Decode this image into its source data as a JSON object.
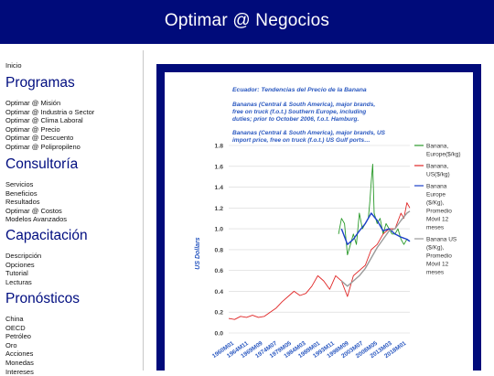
{
  "header": {
    "title": "Optimar @ Negocios"
  },
  "sidebar": {
    "home": "Inicio",
    "sections": [
      {
        "title": "Programas",
        "items": [
          "Optimar @ Misión",
          "Optimar @ Industria o Sector",
          "Optimar @ Clima Laboral",
          "Optimar @ Precio",
          "Optimar @ Descuento",
          "Optimar @ Polipropileno"
        ]
      },
      {
        "title": "Consultoría",
        "items": [
          "Servicios",
          "Beneficios",
          "Resultados",
          "Optimar @ Costos",
          "Modelos Avanzados"
        ]
      },
      {
        "title": "Capacitación",
        "items": [
          "Descripción",
          "Opciones",
          "Tutorial",
          "Lecturas"
        ]
      },
      {
        "title": "Pronósticos",
        "items": [
          "China",
          "OECD",
          "Petróleo",
          "Oro",
          "Acciones",
          "Monedas",
          "Intereses"
        ]
      }
    ]
  },
  "colors": {
    "brand": "#000b7a",
    "banana_europe": "#2a9a2a",
    "banana_us": "#e02626",
    "europe_ma": "#1b3fc8",
    "us_ma": "#9a9a9a"
  },
  "chart_data": {
    "type": "line",
    "title": "Ecuador: Tendencias del Precio de la Banana",
    "annotations": [
      "Bananas (Central & South America), major brands, free on truck (f.o.t.) Southern Europe, including duties; prior to October 2006, f.o.t. Hamburg.",
      "Bananas (Central & South America), major brands, US import price, free on truck (f.o.t.) US Gulf ports…"
    ],
    "ylabel": "US Dollars",
    "xlabel": "",
    "ylim": [
      0,
      1.8
    ],
    "y_ticks": [
      "0.0",
      "0.2",
      "0.4",
      "0.6",
      "0.8",
      "1.0",
      "1.2",
      "1.4",
      "1.6",
      "1.8"
    ],
    "x_ticks": [
      "1960M01",
      "1964M11",
      "1969M09",
      "1974M07",
      "1979M05",
      "1984M03",
      "1989M01",
      "1993M11",
      "1998M09",
      "2003M07",
      "2008M05",
      "2013M03",
      "2018M01"
    ],
    "x_range": [
      1960,
      2021
    ],
    "grid": true,
    "legend_position": "right",
    "series": [
      {
        "name": "Banana, Europe($/kg)",
        "x": [
          1997,
          1998,
          1999,
          2000,
          2001,
          2002,
          2003,
          2004,
          2005,
          2006,
          2007,
          2007.5,
          2008,
          2008.5,
          2009,
          2010,
          2011,
          2012,
          2013,
          2014,
          2015,
          2016,
          2017,
          2018,
          2019,
          2020,
          2021
        ],
        "y": [
          0.95,
          1.1,
          1.05,
          0.75,
          0.85,
          0.95,
          0.85,
          1.15,
          1.0,
          1.05,
          1.1,
          1.25,
          1.45,
          1.62,
          1.15,
          1.05,
          1.1,
          0.95,
          1.05,
          1.0,
          0.95,
          0.95,
          1.0,
          0.9,
          0.85,
          0.9,
          0.88
        ]
      },
      {
        "name": "Banana, US($/kg)",
        "x": [
          1960,
          1962,
          1964,
          1966,
          1968,
          1970,
          1972,
          1974,
          1976,
          1978,
          1980,
          1982,
          1984,
          1986,
          1988,
          1990,
          1992,
          1994,
          1996,
          1998,
          2000,
          2002,
          2004,
          2006,
          2008,
          2010,
          2012,
          2014,
          2016,
          2018,
          2019,
          2020,
          2021
        ],
        "y": [
          0.14,
          0.13,
          0.16,
          0.15,
          0.17,
          0.15,
          0.16,
          0.2,
          0.24,
          0.3,
          0.35,
          0.4,
          0.36,
          0.38,
          0.45,
          0.55,
          0.5,
          0.42,
          0.55,
          0.5,
          0.35,
          0.55,
          0.6,
          0.65,
          0.8,
          0.85,
          0.95,
          1.0,
          1.0,
          1.15,
          1.1,
          1.25,
          1.2
        ]
      },
      {
        "name": "Banana Europe ($/Kg), Promedio Móvil 12 meses",
        "x": [
          1998,
          2000,
          2002,
          2004,
          2006,
          2008,
          2010,
          2012,
          2014,
          2016,
          2018,
          2020,
          2021
        ],
        "y": [
          1.0,
          0.85,
          0.9,
          0.98,
          1.05,
          1.15,
          1.08,
          0.98,
          1.0,
          0.95,
          0.92,
          0.9,
          0.88
        ]
      },
      {
        "name": "Banana US ($/Kg), Promedio Móvil 12 meses",
        "x": [
          1998,
          2000,
          2002,
          2004,
          2006,
          2008,
          2010,
          2012,
          2014,
          2016,
          2018,
          2020,
          2021
        ],
        "y": [
          0.5,
          0.45,
          0.5,
          0.55,
          0.62,
          0.72,
          0.82,
          0.9,
          0.98,
          1.0,
          1.08,
          1.15,
          1.17
        ]
      }
    ]
  }
}
